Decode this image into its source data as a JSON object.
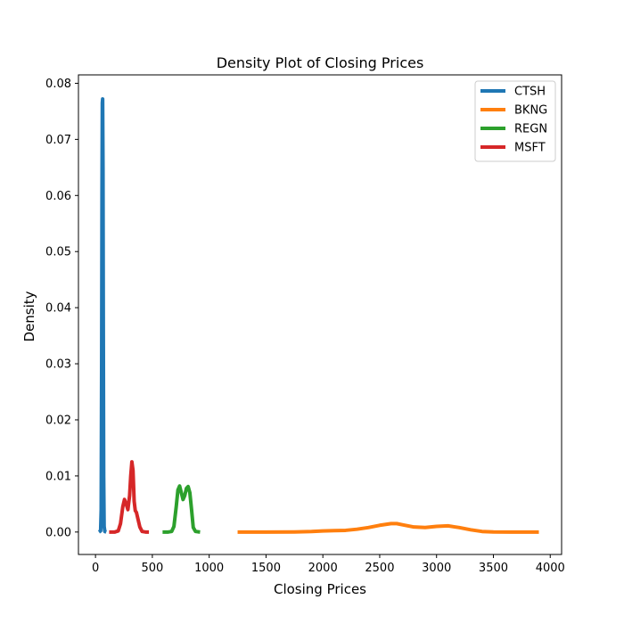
{
  "chart_data": {
    "type": "line",
    "title": "Density Plot of Closing Prices",
    "xlabel": "Closing Prices",
    "ylabel": "Density",
    "xlim": [
      -150,
      4100
    ],
    "ylim": [
      -0.004,
      0.0815
    ],
    "xticks": [
      0,
      500,
      1000,
      1500,
      2000,
      2500,
      3000,
      3500,
      4000
    ],
    "yticks": [
      0.0,
      0.01,
      0.02,
      0.03,
      0.04,
      0.05,
      0.06,
      0.07,
      0.08
    ],
    "xtick_labels": [
      "0",
      "500",
      "1000",
      "1500",
      "2000",
      "2500",
      "3000",
      "3500",
      "4000"
    ],
    "ytick_labels": [
      "0.00",
      "0.01",
      "0.02",
      "0.03",
      "0.04",
      "0.05",
      "0.06",
      "0.07",
      "0.08"
    ],
    "grid": false,
    "legend_position": "top-right",
    "series": [
      {
        "name": "CTSH",
        "color": "#1f77b4",
        "x": [
          30,
          45,
          50,
          54,
          57,
          60,
          63,
          66,
          69,
          72,
          76,
          82,
          95
        ],
        "y": [
          0,
          0.0002,
          0.004,
          0.03,
          0.06,
          0.0765,
          0.0772,
          0.065,
          0.035,
          0.01,
          0.001,
          0.0001,
          0
        ]
      },
      {
        "name": "BKNG",
        "color": "#ff7f0e",
        "x": [
          1250,
          1500,
          1750,
          1900,
          2000,
          2100,
          2200,
          2300,
          2400,
          2500,
          2600,
          2650,
          2700,
          2800,
          2900,
          3000,
          3100,
          3200,
          3300,
          3400,
          3500,
          3650,
          3900
        ],
        "y": [
          0,
          0,
          2e-05,
          0.0001,
          0.0002,
          0.00025,
          0.0003,
          0.0005,
          0.0008,
          0.0012,
          0.0015,
          0.0015,
          0.0013,
          0.0009,
          0.0008,
          0.001,
          0.0011,
          0.0008,
          0.0004,
          0.0001,
          2e-05,
          0,
          0
        ]
      },
      {
        "name": "REGN",
        "color": "#2ca02c",
        "x": [
          590,
          640,
          670,
          690,
          710,
          725,
          740,
          755,
          770,
          785,
          800,
          815,
          830,
          845,
          860,
          880,
          920
        ],
        "y": [
          0,
          0,
          0.0001,
          0.001,
          0.0045,
          0.0075,
          0.0082,
          0.007,
          0.0058,
          0.0065,
          0.0078,
          0.0081,
          0.007,
          0.004,
          0.0008,
          0.0001,
          0
        ]
      },
      {
        "name": "MSFT",
        "color": "#d62728",
        "x": [
          120,
          170,
          200,
          220,
          240,
          255,
          270,
          285,
          300,
          310,
          320,
          330,
          340,
          350,
          360,
          375,
          390,
          410,
          440,
          470
        ],
        "y": [
          0,
          0,
          0.0002,
          0.0015,
          0.0045,
          0.0058,
          0.005,
          0.004,
          0.0065,
          0.01,
          0.0125,
          0.011,
          0.0055,
          0.0038,
          0.0035,
          0.0022,
          0.0009,
          0.0001,
          0,
          0
        ]
      }
    ]
  }
}
